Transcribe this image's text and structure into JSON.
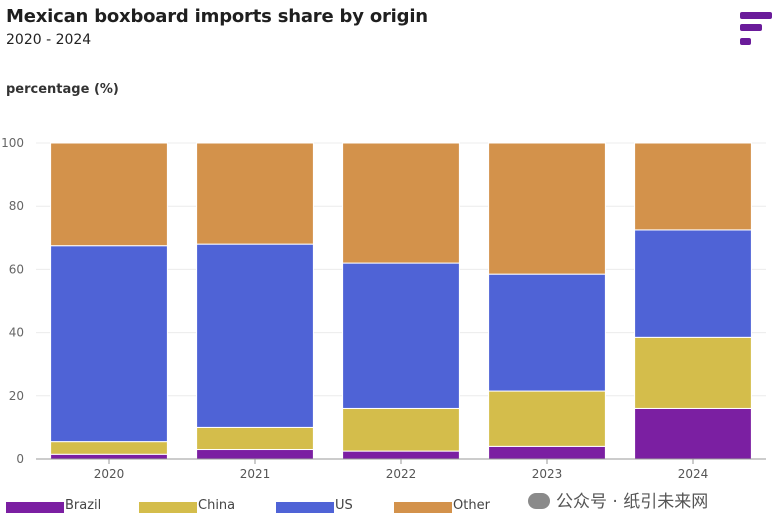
{
  "title": "Mexican boxboard imports share by origin",
  "subtitle": "2020 - 2024",
  "y_axis_title": "percentage (%)",
  "watermark": "公众号 · 纸引未来网",
  "colors": {
    "Brazil": "#7b1fa2",
    "China": "#d4bd4b",
    "US": "#4f63d6",
    "Other": "#d3924b",
    "logo": "#6a1b9a"
  },
  "chart_data": {
    "type": "bar",
    "stacked": true,
    "categories": [
      "2020",
      "2021",
      "2022",
      "2023",
      "2024"
    ],
    "series": [
      {
        "name": "Brazil",
        "values": [
          1.5,
          3,
          2.5,
          4,
          16
        ]
      },
      {
        "name": "China",
        "values": [
          4,
          7,
          13.5,
          17.5,
          22.5
        ]
      },
      {
        "name": "US",
        "values": [
          62,
          58,
          46,
          37,
          34
        ]
      },
      {
        "name": "Other",
        "values": [
          32.5,
          32,
          38,
          41.5,
          27.5
        ]
      }
    ],
    "y_ticks": [
      "0",
      "20",
      "40",
      "60",
      "80",
      "100"
    ],
    "ylim": [
      0,
      100
    ],
    "ylabel": "percentage (%)",
    "xlabel": "",
    "grid": true,
    "legend_position": "bottom-left"
  }
}
